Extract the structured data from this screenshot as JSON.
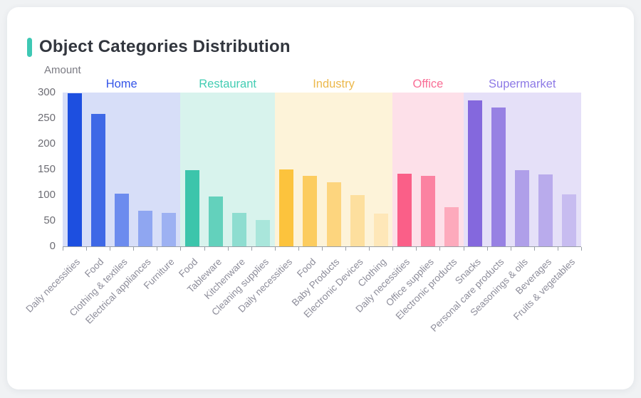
{
  "header": {
    "title": "Object Categories Distribution",
    "accent_color": "#3ec8b4"
  },
  "chart_data": {
    "type": "bar",
    "title": "Object Categories Distribution",
    "y_axis_label": "Amount",
    "ylim": [
      0,
      300
    ],
    "y_ticks": [
      300,
      250,
      200,
      150,
      100,
      50,
      0
    ],
    "grid": false,
    "legend_position": "top-inline-group-labels",
    "groups": [
      {
        "name": "Home",
        "label_color": "#3354e8",
        "panel_color": "#d7def8",
        "bars": [
          {
            "label": "Daily necessities",
            "value": 298,
            "color": "#1d4fe0"
          },
          {
            "label": "Food",
            "value": 258,
            "color": "#3e68e6"
          },
          {
            "label": "Clothing & textiles",
            "value": 103,
            "color": "#6c8bee"
          },
          {
            "label": "Electrical appliances",
            "value": 70,
            "color": "#8fa6f1"
          },
          {
            "label": "Furniture",
            "value": 65,
            "color": "#9db1f2"
          }
        ]
      },
      {
        "name": "Restaurant",
        "label_color": "#43cdb3",
        "panel_color": "#d8f3ed",
        "bars": [
          {
            "label": "Food",
            "value": 148,
            "color": "#3cc5ab"
          },
          {
            "label": "Tableware",
            "value": 97,
            "color": "#63d1bc"
          },
          {
            "label": "Kitchenware",
            "value": 65,
            "color": "#8eddd0"
          },
          {
            "label": "Cleaning supplies",
            "value": 51,
            "color": "#a9e6db"
          }
        ]
      },
      {
        "name": "Industry",
        "label_color": "#ecb84b",
        "panel_color": "#fdf3d9",
        "bars": [
          {
            "label": "Daily necessities",
            "value": 150,
            "color": "#fcc33d"
          },
          {
            "label": "Food",
            "value": 138,
            "color": "#fccc5f"
          },
          {
            "label": "Baby Products",
            "value": 125,
            "color": "#fdd57e"
          },
          {
            "label": "Electronic Devices",
            "value": 100,
            "color": "#fddf9e"
          },
          {
            "label": "Clothing",
            "value": 64,
            "color": "#fee7b8"
          }
        ]
      },
      {
        "name": "Office",
        "label_color": "#f96e96",
        "panel_color": "#fde0e9",
        "bars": [
          {
            "label": "Daily necessities",
            "value": 142,
            "color": "#fa5f88"
          },
          {
            "label": "Office supplies",
            "value": 138,
            "color": "#fb82a1"
          },
          {
            "label": "Electronic products",
            "value": 76,
            "color": "#fdaabc"
          }
        ]
      },
      {
        "name": "Supermarket",
        "label_color": "#8d79e6",
        "panel_color": "#e5e0f8",
        "bars": [
          {
            "label": "Snacks",
            "value": 285,
            "color": "#8468dd"
          },
          {
            "label": "Personal care products",
            "value": 271,
            "color": "#9781e3"
          },
          {
            "label": "Seasonings & oils",
            "value": 148,
            "color": "#af9fe9"
          },
          {
            "label": "Beverages",
            "value": 140,
            "color": "#b9abec"
          },
          {
            "label": "Fruits & vegetables",
            "value": 102,
            "color": "#c7bcf0"
          }
        ]
      }
    ]
  }
}
